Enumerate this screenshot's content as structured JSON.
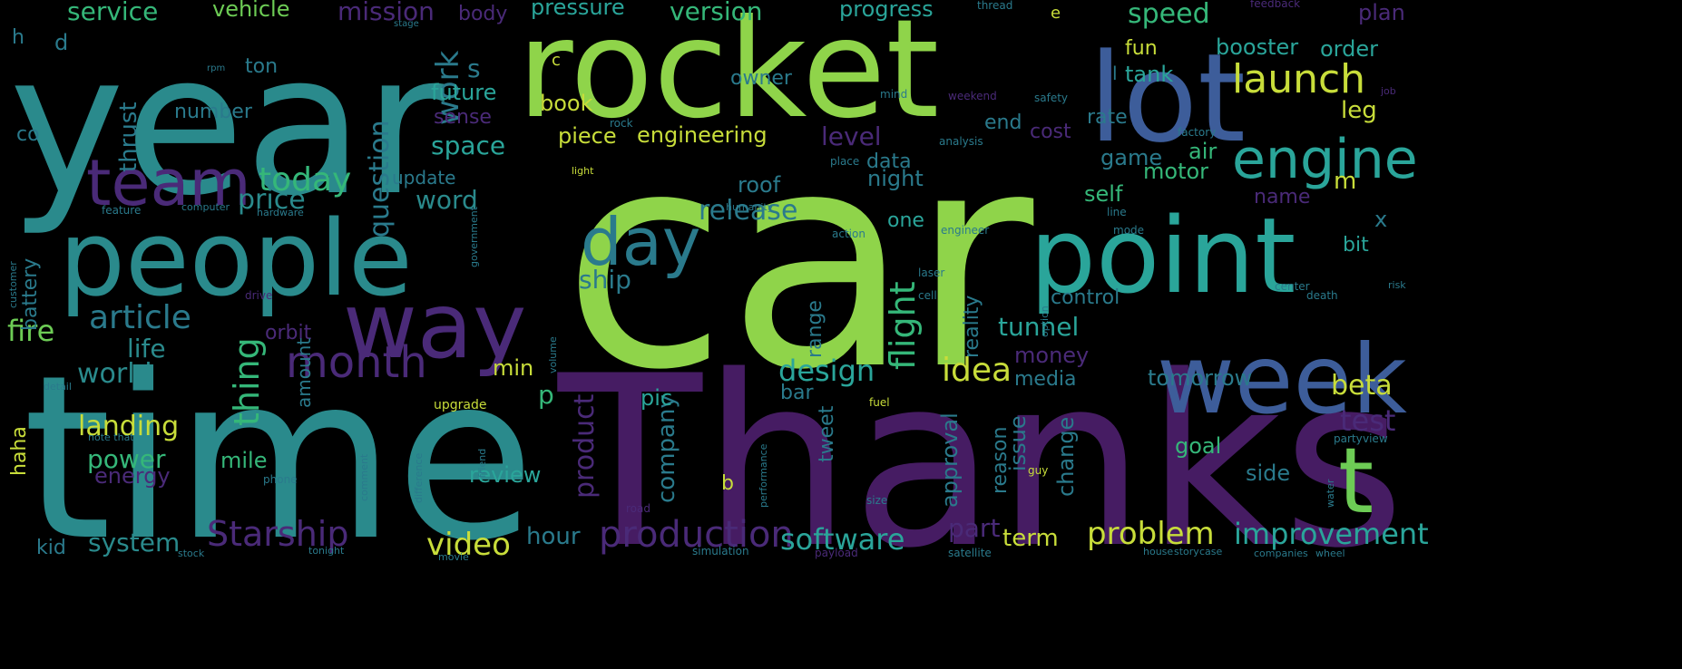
{
  "background_color": "#000000",
  "palette": {
    "yellow_green": "#8fd44a",
    "light_green": "#6dcc55",
    "teal": "#2a8a8c",
    "cyan": "#2aa59a",
    "blue": "#3d5d9a",
    "purple": "#4a2a78",
    "dark_purple": "#461c63",
    "yellow": "#c8dd3a"
  },
  "words": [
    {
      "text": "car",
      "color": "#8fd44a"
    },
    {
      "text": "Thanks",
      "color": "#461c63"
    },
    {
      "text": "time",
      "color": "#2a8a8c"
    },
    {
      "text": "year",
      "color": "#2a8a8c"
    },
    {
      "text": "rocket",
      "color": "#8fd44a"
    },
    {
      "text": "lot",
      "color": "#3d5d9a"
    },
    {
      "text": "people",
      "color": "#2a8a8c"
    },
    {
      "text": "point",
      "color": "#2aa59a"
    },
    {
      "text": "week",
      "color": "#3d5d9a"
    },
    {
      "text": "way",
      "color": "#4a2a78"
    },
    {
      "text": "t",
      "color": "#6dcc55"
    },
    {
      "text": "team",
      "color": "#4a2a78"
    },
    {
      "text": "day",
      "color": "#2a7a8c"
    },
    {
      "text": "engine",
      "color": "#2aa59a"
    },
    {
      "text": "month",
      "color": "#4a2a78"
    },
    {
      "text": "launch",
      "color": "#c8dd3a"
    },
    {
      "text": "today",
      "color": "#35b779"
    },
    {
      "text": "article",
      "color": "#2a7a8c"
    },
    {
      "text": "production",
      "color": "#4a2a78"
    },
    {
      "text": "video",
      "color": "#c8dd3a"
    },
    {
      "text": "Starship",
      "color": "#4a2a78"
    },
    {
      "text": "design",
      "color": "#2aa59a"
    },
    {
      "text": "idea",
      "color": "#c8dd3a"
    },
    {
      "text": "flight",
      "color": "#35b779"
    },
    {
      "text": "software",
      "color": "#2aa59a"
    },
    {
      "text": "problem",
      "color": "#c8dd3a"
    },
    {
      "text": "improvement",
      "color": "#2aa59a"
    },
    {
      "text": "world",
      "color": "#2a8a8c"
    },
    {
      "text": "landing",
      "color": "#c8dd3a"
    },
    {
      "text": "power",
      "color": "#35b779"
    },
    {
      "text": "system",
      "color": "#2a8a8c"
    },
    {
      "text": "thing",
      "color": "#35b779"
    },
    {
      "text": "life",
      "color": "#2a8a8c"
    },
    {
      "text": "fire",
      "color": "#6dcc55"
    },
    {
      "text": "test",
      "color": "#4a2a78"
    },
    {
      "text": "beta",
      "color": "#c8dd3a"
    },
    {
      "text": "release",
      "color": "#2a7a8c"
    },
    {
      "text": "price",
      "color": "#2a8a8c"
    },
    {
      "text": "work",
      "color": "#2a7a8c"
    },
    {
      "text": "speed",
      "color": "#35b779"
    },
    {
      "text": "version",
      "color": "#35b779"
    },
    {
      "text": "service",
      "color": "#35b779"
    },
    {
      "text": "mission",
      "color": "#4a2a78"
    },
    {
      "text": "space",
      "color": "#2aa59a"
    },
    {
      "text": "question",
      "color": "#2a7a8c"
    },
    {
      "text": "word",
      "color": "#2a8a8c"
    },
    {
      "text": "tunnel",
      "color": "#2aa59a"
    },
    {
      "text": "ship",
      "color": "#2a7a8c"
    },
    {
      "text": "review",
      "color": "#2aa59a"
    },
    {
      "text": "product",
      "color": "#4a2a78"
    },
    {
      "text": "company",
      "color": "#2a7a8c"
    },
    {
      "text": "hour",
      "color": "#2a7a8c"
    },
    {
      "text": "part",
      "color": "#4a2a78"
    },
    {
      "text": "term",
      "color": "#c8dd3a"
    },
    {
      "text": "goal",
      "color": "#35b779"
    },
    {
      "text": "game",
      "color": "#2a7a8c"
    },
    {
      "text": "money",
      "color": "#4a2a78"
    },
    {
      "text": "tomorrow",
      "color": "#2a7a8c"
    },
    {
      "text": "booster",
      "color": "#2aa59a"
    },
    {
      "text": "order",
      "color": "#2aa59a"
    },
    {
      "text": "pressure",
      "color": "#2aa59a"
    },
    {
      "text": "progress",
      "color": "#2aa59a"
    },
    {
      "text": "vehicle",
      "color": "#6dcc55"
    },
    {
      "text": "body",
      "color": "#4a2a78"
    },
    {
      "text": "plan",
      "color": "#4a2a78"
    },
    {
      "text": "future",
      "color": "#2aa59a"
    },
    {
      "text": "book",
      "color": "#c8dd3a"
    },
    {
      "text": "sense",
      "color": "#4a2a78"
    },
    {
      "text": "number",
      "color": "#2a7a8c"
    },
    {
      "text": "thrust",
      "color": "#2a7a8c"
    },
    {
      "text": "owner",
      "color": "#2a7a8c"
    },
    {
      "text": "piece",
      "color": "#c8dd3a"
    },
    {
      "text": "engineering",
      "color": "#c8dd3a"
    },
    {
      "text": "level",
      "color": "#4a2a78"
    },
    {
      "text": "end",
      "color": "#2a7a8c"
    },
    {
      "text": "cost",
      "color": "#4a2a78"
    },
    {
      "text": "rate",
      "color": "#2a7a8c"
    },
    {
      "text": "leg",
      "color": "#c8dd3a"
    },
    {
      "text": "fun",
      "color": "#c8dd3a"
    },
    {
      "text": "tank",
      "color": "#2aa59a"
    },
    {
      "text": "air",
      "color": "#35b779"
    },
    {
      "text": "motor",
      "color": "#35b779"
    },
    {
      "text": "self",
      "color": "#35b779"
    },
    {
      "text": "name",
      "color": "#4a2a78"
    },
    {
      "text": "m",
      "color": "#c8dd3a"
    },
    {
      "text": "data",
      "color": "#2a7a8c"
    },
    {
      "text": "night",
      "color": "#2a7a8c"
    },
    {
      "text": "roof",
      "color": "#2a7a8c"
    },
    {
      "text": "one",
      "color": "#2aa59a"
    },
    {
      "text": "control",
      "color": "#2a7a8c"
    },
    {
      "text": "reality",
      "color": "#2a7a8c"
    },
    {
      "text": "media",
      "color": "#2a7a8c"
    },
    {
      "text": "bar",
      "color": "#2a7a8c"
    },
    {
      "text": "pic",
      "color": "#2aa59a"
    },
    {
      "text": "min",
      "color": "#c8dd3a"
    },
    {
      "text": "p",
      "color": "#35b779"
    },
    {
      "text": "range",
      "color": "#2a7a8c"
    },
    {
      "text": "approval",
      "color": "#2a7a8c"
    },
    {
      "text": "reason",
      "color": "#2a7a8c"
    },
    {
      "text": "issue",
      "color": "#2a7a8c"
    },
    {
      "text": "change",
      "color": "#2a7a8c"
    },
    {
      "text": "side",
      "color": "#2a7a8c"
    },
    {
      "text": "x",
      "color": "#2a7a8c"
    },
    {
      "text": "bit",
      "color": "#2aa59a"
    },
    {
      "text": "tweet",
      "color": "#2a7a8c"
    },
    {
      "text": "b",
      "color": "#c8dd3a"
    },
    {
      "text": "orbit",
      "color": "#4a2a78"
    },
    {
      "text": "amount",
      "color": "#2a7a8c"
    },
    {
      "text": "mile",
      "color": "#35b779"
    },
    {
      "text": "energy",
      "color": "#4a2a78"
    },
    {
      "text": "battery",
      "color": "#2a7a8c"
    },
    {
      "text": "haha",
      "color": "#c8dd3a"
    },
    {
      "text": "kid",
      "color": "#2a7a8c"
    },
    {
      "text": "update",
      "color": "#2a7a8c"
    },
    {
      "text": "s",
      "color": "#2a7a8c"
    },
    {
      "text": "ton",
      "color": "#2a7a8c"
    },
    {
      "text": "d",
      "color": "#2a7a8c"
    },
    {
      "text": "h",
      "color": "#2a7a8c"
    },
    {
      "text": "co",
      "color": "#2a7a8c"
    },
    {
      "text": "c",
      "color": "#c8dd3a"
    },
    {
      "text": "e",
      "color": "#c8dd3a"
    },
    {
      "text": "l",
      "color": "#2a7a8c"
    },
    {
      "text": "upgrade",
      "color": "#c8dd3a"
    },
    {
      "text": "fuel",
      "color": "#c8dd3a"
    },
    {
      "text": "thread",
      "color": "#2a7a8c"
    },
    {
      "text": "feedback",
      "color": "#4a2a78"
    },
    {
      "text": "stage",
      "color": "#2a7a8c"
    },
    {
      "text": "rpm",
      "color": "#2a7a8c"
    },
    {
      "text": "weekend",
      "color": "#4a2a78"
    },
    {
      "text": "safety",
      "color": "#2a7a8c"
    },
    {
      "text": "job",
      "color": "#4a2a78"
    },
    {
      "text": "mind",
      "color": "#2a7a8c"
    },
    {
      "text": "rock",
      "color": "#2a7a8c"
    },
    {
      "text": "factory",
      "color": "#2a7a8c"
    },
    {
      "text": "analysis",
      "color": "#2a7a8c"
    },
    {
      "text": "light",
      "color": "#c8dd3a"
    },
    {
      "text": "place",
      "color": "#2a7a8c"
    },
    {
      "text": "feature",
      "color": "#2a7a8c"
    },
    {
      "text": "computer",
      "color": "#2a7a8c"
    },
    {
      "text": "hardware",
      "color": "#2a7a8c"
    },
    {
      "text": "humanity",
      "color": "#2a7a8c"
    },
    {
      "text": "government",
      "color": "#2a7a8c"
    },
    {
      "text": "action",
      "color": "#2a7a8c"
    },
    {
      "text": "engineer",
      "color": "#2a7a8c"
    },
    {
      "text": "line",
      "color": "#2a7a8c"
    },
    {
      "text": "mode",
      "color": "#2a7a8c"
    },
    {
      "text": "customer",
      "color": "#2a7a8c"
    },
    {
      "text": "laser",
      "color": "#2a7a8c"
    },
    {
      "text": "cell",
      "color": "#2a7a8c"
    },
    {
      "text": "option",
      "color": "#2a7a8c"
    },
    {
      "text": "drive",
      "color": "#4a2a78"
    },
    {
      "text": "volume",
      "color": "#2a7a8c"
    },
    {
      "text": "detail",
      "color": "#2a7a8c"
    },
    {
      "text": "death",
      "color": "#2a7a8c"
    },
    {
      "text": "center",
      "color": "#2a7a8c"
    },
    {
      "text": "risk",
      "color": "#2a7a8c"
    },
    {
      "text": "note that",
      "color": "#2a7a8c"
    },
    {
      "text": "difference",
      "color": "#2a7a8c"
    },
    {
      "text": "friend",
      "color": "#2a7a8c"
    },
    {
      "text": "comment",
      "color": "#2a7a8c"
    },
    {
      "text": "phone",
      "color": "#2a7a8c"
    },
    {
      "text": "road",
      "color": "#4a2a78"
    },
    {
      "text": "performance",
      "color": "#2a7a8c"
    },
    {
      "text": "size",
      "color": "#2a7a8c"
    },
    {
      "text": "guy",
      "color": "#c8dd3a"
    },
    {
      "text": "party",
      "color": "#2a7a8c"
    },
    {
      "text": "view",
      "color": "#2a7a8c"
    },
    {
      "text": "water",
      "color": "#2a7a8c"
    },
    {
      "text": "tonight",
      "color": "#2a7a8c"
    },
    {
      "text": "movie",
      "color": "#2a7a8c"
    },
    {
      "text": "simulation",
      "color": "#2a7a8c"
    },
    {
      "text": "payload",
      "color": "#4a2a78"
    },
    {
      "text": "satellite",
      "color": "#2a7a8c"
    },
    {
      "text": "house",
      "color": "#2a7a8c"
    },
    {
      "text": "story",
      "color": "#2a7a8c"
    },
    {
      "text": "case",
      "color": "#2a7a8c"
    },
    {
      "text": "companies",
      "color": "#2a7a8c"
    },
    {
      "text": "wheel",
      "color": "#2a7a8c"
    },
    {
      "text": "stock",
      "color": "#2a7a8c"
    }
  ]
}
